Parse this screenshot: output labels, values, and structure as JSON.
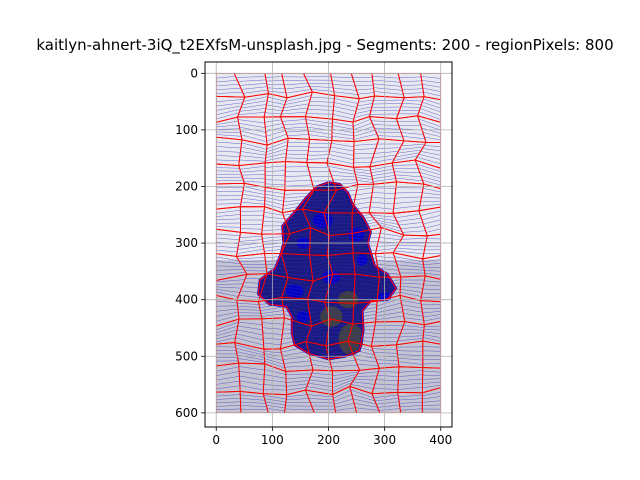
{
  "figure": {
    "title": "kaitlyn-ahnert-3iQ_t2EXfsM-unsplash.jpg - Segments: 200 - regionPixels: 800"
  },
  "axes": {
    "x_ticks": [
      0,
      100,
      200,
      300,
      400
    ],
    "y_ticks": [
      0,
      100,
      200,
      300,
      400,
      500,
      600
    ],
    "xlim": [
      -20,
      420
    ],
    "ylim": [
      625,
      -20
    ],
    "image_extent": {
      "width": 400,
      "height": 600
    },
    "grid": true
  },
  "colors": {
    "boundary": "#ff0000",
    "flow": "#3030c0",
    "object_fill": "#1a1a80",
    "object_blue": "#0000d0",
    "background_light": "#e8e8f0",
    "background_gray": "#b8b8c8",
    "dark_gray": "#404040"
  }
}
